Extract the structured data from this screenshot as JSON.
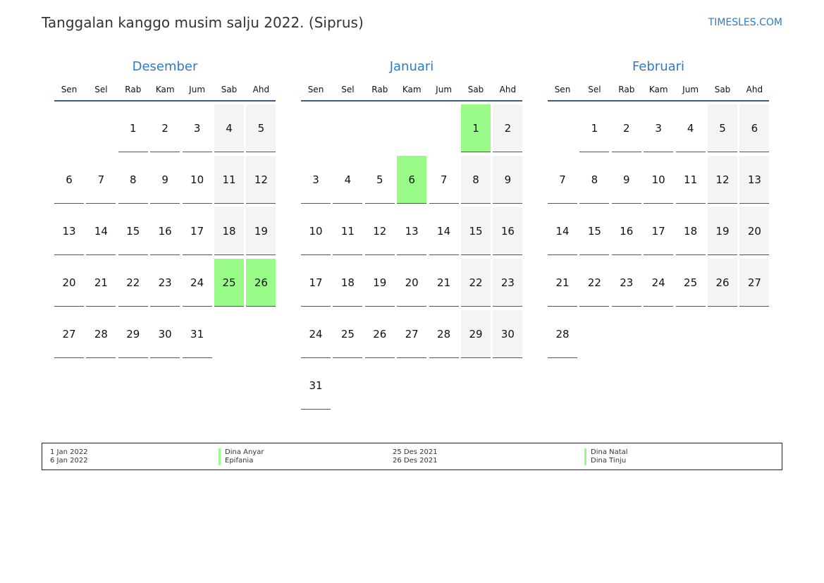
{
  "header": {
    "title": "Tanggalan kanggo musim salju 2022. (Siprus)",
    "brand": "TIMESLES.COM"
  },
  "weekdays": [
    "Sen",
    "Sel",
    "Rab",
    "Kam",
    "Jum",
    "Sab",
    "Ahd"
  ],
  "colors": {
    "accent": "#2e7bc4",
    "holiday": "#99fb88",
    "weekend": "#f4f4f4"
  },
  "months": [
    {
      "name": "Desember",
      "start_weekday": "Rab",
      "days": 31,
      "holidays": [
        25,
        26
      ]
    },
    {
      "name": "Januari",
      "start_weekday": "Sab",
      "days": 31,
      "holidays": [
        1,
        6
      ]
    },
    {
      "name": "Februari",
      "start_weekday": "Sel",
      "days": 28,
      "holidays": []
    }
  ],
  "legend": [
    {
      "dates": [
        "1 Jan 2022",
        "6 Jan 2022"
      ],
      "names": [
        "Dina Anyar",
        "Epifania"
      ]
    },
    {
      "dates": [
        "25 Des 2021",
        "26 Des 2021"
      ],
      "names": [
        "Dina Natal",
        "Dina Tinju"
      ]
    }
  ]
}
